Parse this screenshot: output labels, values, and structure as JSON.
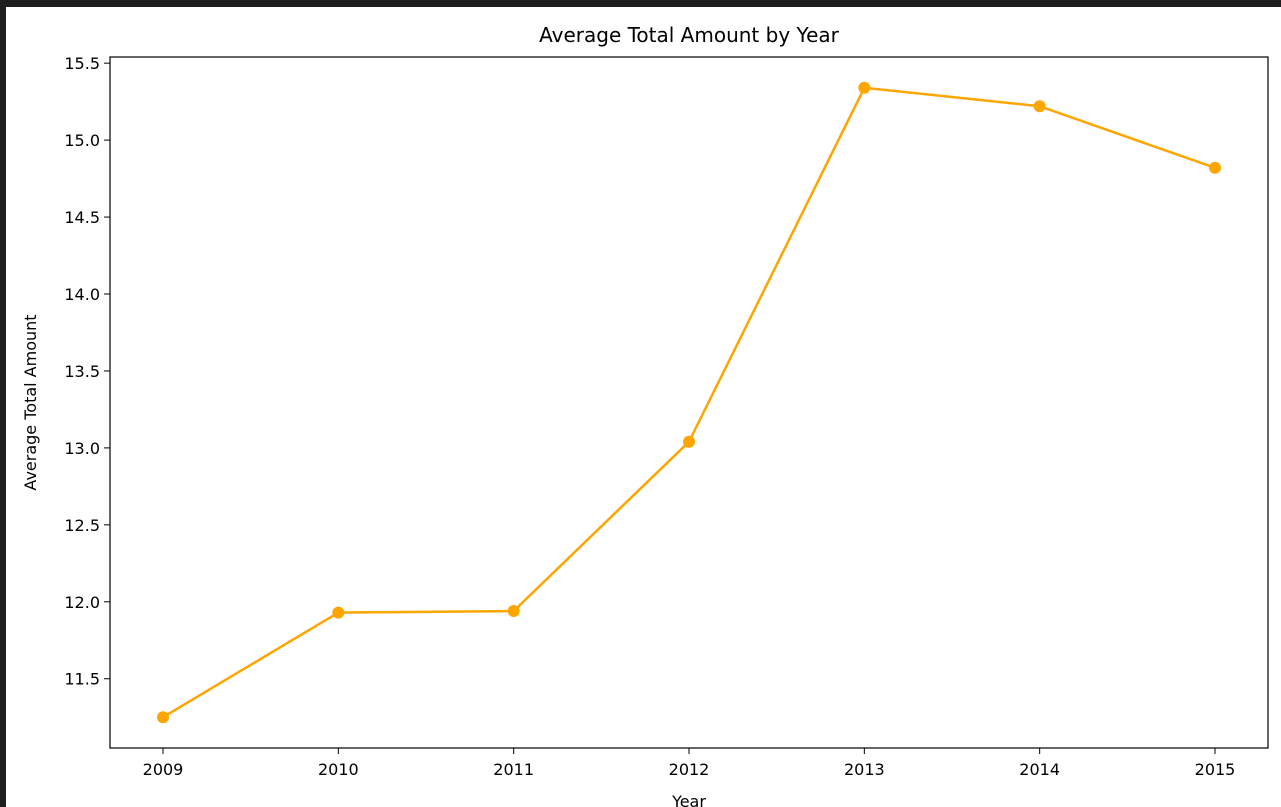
{
  "chart_data": {
    "type": "line",
    "title": "Average Total Amount by Year",
    "xlabel": "Year",
    "ylabel": "Average Total Amount",
    "x": [
      "2009",
      "2010",
      "2011",
      "2012",
      "2013",
      "2014",
      "2015"
    ],
    "series": [
      {
        "values": [
          11.25,
          11.93,
          11.94,
          13.04,
          15.34,
          15.22,
          14.82
        ]
      }
    ],
    "yticks": [
      "11.5",
      "12.0",
      "12.5",
      "13.0",
      "13.5",
      "14.0",
      "14.5",
      "15.0",
      "15.5"
    ],
    "ylim": [
      11.05,
      15.54
    ],
    "grid": false,
    "colors": {
      "line": "#ffa500",
      "marker": "#ffa500",
      "background": "#ffffff",
      "page": "#1e1e1e"
    }
  }
}
